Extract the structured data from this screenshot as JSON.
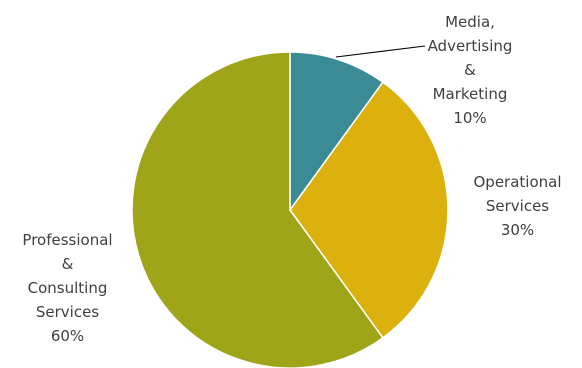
{
  "chart_data": {
    "type": "pie",
    "start_angle_deg": 0,
    "direction": "clockwise",
    "slices": [
      {
        "key": "media",
        "label_lines": [
          "Media,",
          "Advertising",
          "&",
          "Marketing"
        ],
        "value": 10,
        "value_label": "10%",
        "color": "#3b8b96"
      },
      {
        "key": "operational",
        "label_lines": [
          "Operational",
          "Services"
        ],
        "value": 30,
        "value_label": "30%",
        "color": "#dcb10d"
      },
      {
        "key": "professional",
        "label_lines": [
          "Professional",
          "&",
          "Consulting",
          "Services"
        ],
        "value": 60,
        "value_label": "60%",
        "color": "#9fa519"
      }
    ],
    "leader_line_color": "#000000",
    "slice_border_color": "#ffffff"
  }
}
